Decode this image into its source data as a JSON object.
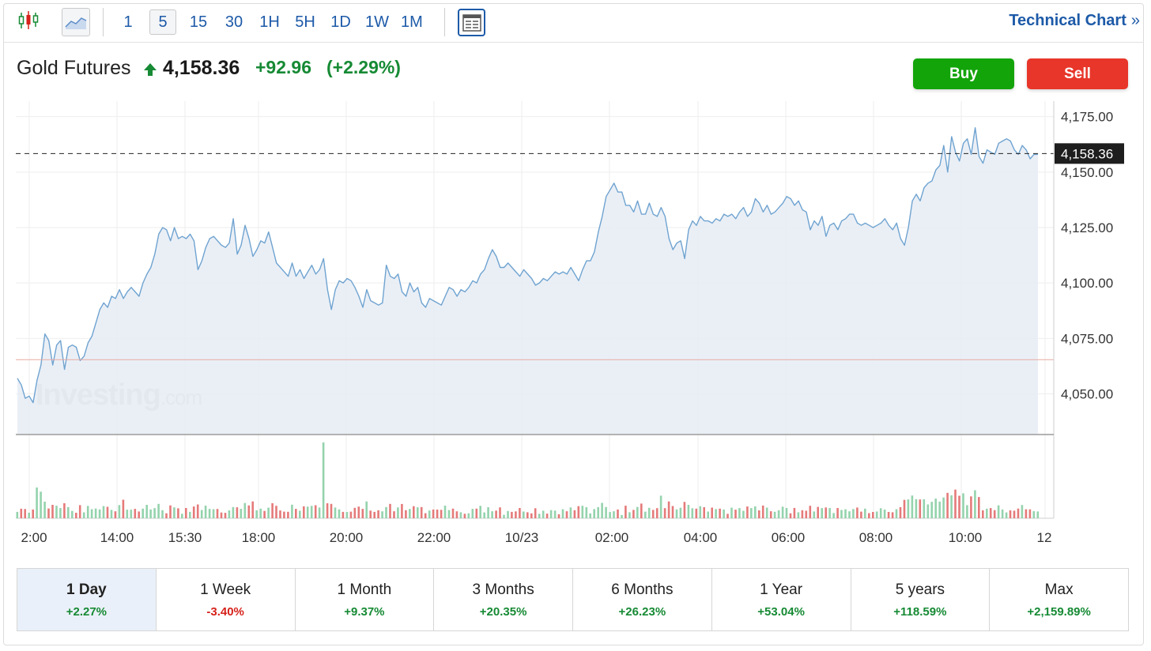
{
  "toolbar": {
    "timeframes": [
      "1",
      "5",
      "15",
      "30",
      "1H",
      "5H",
      "1D",
      "1W",
      "1M"
    ],
    "active_timeframe": "5",
    "technical_chart_label": "Technical Chart",
    "technical_chart_chevron": "»",
    "icons": [
      "candlestick-icon",
      "area-chart-icon",
      "full-view-icon"
    ]
  },
  "instrument": {
    "name": "Gold Futures",
    "direction_icon": "arrow-up-icon",
    "price": "4,158.36",
    "change": "+92.96",
    "change_percent": "(+2.29%)"
  },
  "actions": {
    "buy_label": "Buy",
    "sell_label": "Sell"
  },
  "watermark": {
    "brand": "Investing",
    "suffix": ".com"
  },
  "colors": {
    "accent": "#1d5aa8",
    "up": "#168a34",
    "down": "#d6221b",
    "buy": "#13a40a",
    "sell": "#e8362a",
    "line": "#6fa3d0",
    "area": "#e6ecf5",
    "volume_up": "#94d3ad",
    "volume_down": "#e57a7a",
    "prev_close_line": "#e8a9a3"
  },
  "chart_data": {
    "type": "area",
    "title": "",
    "xlabel": "",
    "ylabel": "",
    "x_tick_labels": [
      "2:00",
      "14:00",
      "15:30",
      "18:00",
      "20:00",
      "22:00",
      "10/23",
      "02:00",
      "04:00",
      "06:00",
      "08:00",
      "10:00",
      "12"
    ],
    "y_tick_labels": [
      "4,175.00",
      "4,150.00",
      "4,125.00",
      "4,100.00",
      "4,075.00",
      "4,050.00"
    ],
    "y_ticks": [
      4175,
      4150,
      4125,
      4100,
      4075,
      4050
    ],
    "ylim": [
      4032,
      4182
    ],
    "last_price": 4158.36,
    "last_price_label": "4,158.36",
    "previous_close": 4065.4,
    "grid": true,
    "series": [
      {
        "values": [
          4057,
          4054,
          4048,
          4049,
          4046,
          4056,
          4063,
          4077,
          4074,
          4063,
          4072,
          4074,
          4061,
          4071,
          4072,
          4071,
          4065,
          4067,
          4073,
          4076,
          4082,
          4088,
          4091,
          4089,
          4094,
          4093,
          4097,
          4093,
          4096,
          4098,
          4096,
          4094,
          4100,
          4104,
          4107,
          4113,
          4122,
          4125,
          4124,
          4119,
          4125,
          4120,
          4121,
          4120,
          4122,
          4119,
          4106,
          4110,
          4116,
          4120,
          4121,
          4119,
          4117,
          4116,
          4118,
          4129,
          4113,
          4117,
          4126,
          4120,
          4112,
          4115,
          4119,
          4118,
          4123,
          4116,
          4109,
          4107,
          4105,
          4103,
          4109,
          4103,
          4106,
          4102,
          4105,
          4108,
          4104,
          4106,
          4111,
          4097,
          4088,
          4097,
          4101,
          4100,
          4102,
          4101,
          4098,
          4094,
          4089,
          4097,
          4092,
          4091,
          4090,
          4091,
          4108,
          4103,
          4102,
          4104,
          4096,
          4094,
          4100,
          4096,
          4098,
          4091,
          4089,
          4093,
          4092,
          4091,
          4090,
          4094,
          4098,
          4097,
          4094,
          4097,
          4096,
          4098,
          4101,
          4100,
          4104,
          4106,
          4111,
          4115,
          4112,
          4107,
          4107,
          4109,
          4107,
          4105,
          4103,
          4106,
          4104,
          4102,
          4099,
          4100,
          4102,
          4101,
          4103,
          4105,
          4104,
          4105,
          4104,
          4107,
          4104,
          4101,
          4106,
          4110,
          4110,
          4114,
          4123,
          4130,
          4139,
          4142,
          4145,
          4141,
          4141,
          4135,
          4135,
          4132,
          4137,
          4131,
          4131,
          4136,
          4131,
          4130,
          4134,
          4130,
          4120,
          4115,
          4118,
          4119,
          4111,
          4124,
          4128,
          4126,
          4130,
          4128,
          4128,
          4127,
          4129,
          4128,
          4131,
          4130,
          4131,
          4129,
          4132,
          4134,
          4130,
          4132,
          4138,
          4136,
          4132,
          4135,
          4131,
          4132,
          4134,
          4136,
          4139,
          4138,
          4135,
          4137,
          4133,
          4132,
          4124,
          4128,
          4126,
          4130,
          4121,
          4126,
          4127,
          4124,
          4128,
          4129,
          4131,
          4131,
          4127,
          4126,
          4127,
          4126,
          4125,
          4126,
          4127,
          4129,
          4126,
          4124,
          4127,
          4120,
          4117,
          4125,
          4137,
          4140,
          4137,
          4143,
          4145,
          4146,
          4151,
          4153,
          4162,
          4150,
          4166,
          4159,
          4155,
          4163,
          4165,
          4158,
          4170,
          4157,
          4154,
          4160,
          4159,
          4158,
          4163,
          4164,
          4165,
          4164,
          4160,
          4158,
          4162,
          4160,
          4156,
          4158,
          4158
        ]
      }
    ],
    "volume": {
      "max_value": 100,
      "spike_value": 100
    }
  },
  "periods": [
    {
      "label": "1 Day",
      "value": "+2.27%",
      "direction": "pos"
    },
    {
      "label": "1 Week",
      "value": "-3.40%",
      "direction": "neg"
    },
    {
      "label": "1 Month",
      "value": "+9.37%",
      "direction": "pos"
    },
    {
      "label": "3 Months",
      "value": "+20.35%",
      "direction": "pos"
    },
    {
      "label": "6 Months",
      "value": "+26.23%",
      "direction": "pos"
    },
    {
      "label": "1 Year",
      "value": "+53.04%",
      "direction": "pos"
    },
    {
      "label": "5 years",
      "value": "+118.59%",
      "direction": "pos"
    },
    {
      "label": "Max",
      "value": "+2,159.89%",
      "direction": "pos"
    }
  ],
  "active_period": "1 Day"
}
